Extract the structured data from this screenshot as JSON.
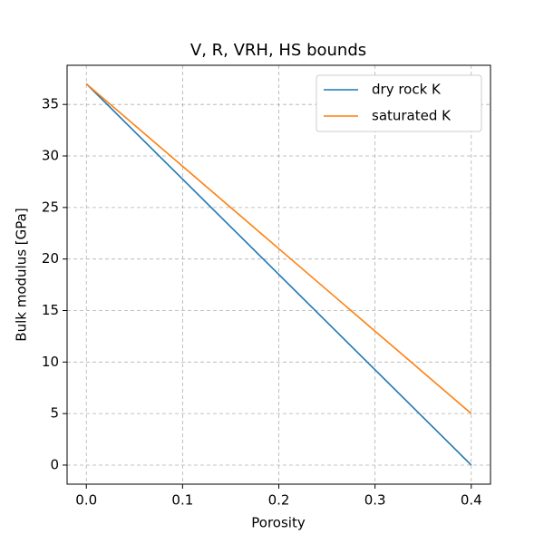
{
  "chart_data": {
    "type": "line",
    "title": "V, R, VRH, HS bounds",
    "x_label": "Porosity",
    "y_label": "Bulk modulus [GPa]",
    "x": [
      0,
      0.1,
      0.2,
      0.3,
      0.4
    ],
    "series": [
      {
        "name": "dry rock K",
        "color": "#1f77b4",
        "values": [
          37,
          27.75,
          18.5,
          9.25,
          0
        ]
      },
      {
        "name": "saturated K",
        "color": "#ff7f0e",
        "values": [
          37,
          29,
          21,
          13,
          5
        ]
      }
    ],
    "xlim": [
      -0.02,
      0.42
    ],
    "ylim": [
      -1.85,
      38.8
    ],
    "xticks": [
      {
        "value": 0,
        "label": "0.0"
      },
      0.1,
      0.2,
      0.3,
      0.4
    ],
    "yticks": [
      0,
      5,
      10,
      15,
      20,
      25,
      30,
      35
    ],
    "grid": true,
    "legend": "upper-right"
  }
}
